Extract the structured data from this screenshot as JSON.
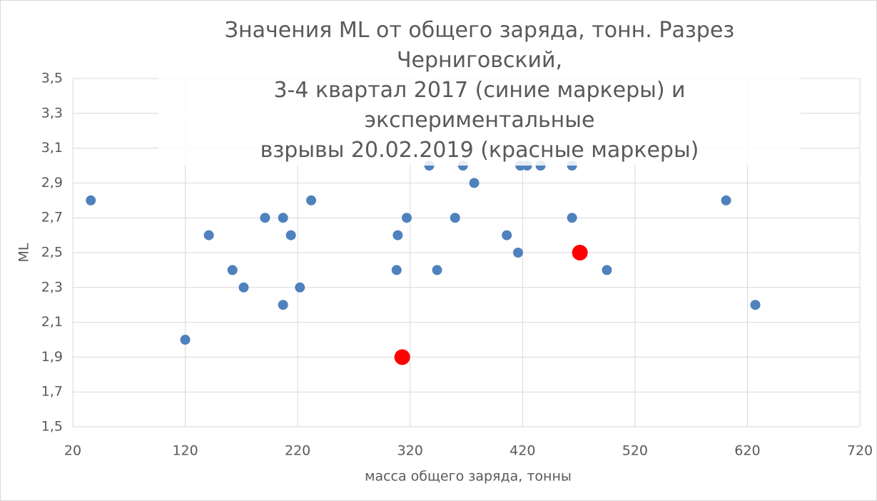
{
  "chart_data": {
    "type": "scatter",
    "title": "Значения ML от общего заряда, тонн. Разрез Черниговский,\n3-4 квартал 2017 (синие маркеры) и экспериментальные\nвзрывы 20.02.2019 (красные маркеры)",
    "x_label": "масса общего заряда, тонны",
    "y_label": "ML",
    "xlim": [
      20,
      720
    ],
    "xticks": [
      20,
      120,
      220,
      320,
      420,
      520,
      620,
      720
    ],
    "ylim": [
      1.5,
      3.5
    ],
    "yticks": [
      {
        "value": 1.5,
        "label": "1,5"
      },
      {
        "value": 1.7,
        "label": "1,7"
      },
      {
        "value": 1.9,
        "label": "1,9"
      },
      {
        "value": 2.1,
        "label": "2,1"
      },
      {
        "value": 2.3,
        "label": "2,3"
      },
      {
        "value": 2.5,
        "label": "2,5"
      },
      {
        "value": 2.7,
        "label": "2,7"
      },
      {
        "value": 2.9,
        "label": "2,9"
      },
      {
        "value": 3.1,
        "label": "3,1"
      },
      {
        "value": 3.3,
        "label": "3,3"
      },
      {
        "value": 3.5,
        "label": "3,5"
      }
    ],
    "grid": true,
    "series": [
      {
        "color": "#4f81bd",
        "x": [
          36,
          120,
          141,
          162,
          172,
          191,
          207,
          207,
          214,
          222,
          232,
          308,
          309,
          317,
          337,
          344,
          360,
          367,
          377,
          406,
          416,
          418,
          424,
          436,
          464,
          464,
          495,
          601,
          627
        ],
        "values": [
          2.8,
          2.0,
          2.6,
          2.4,
          2.3,
          2.7,
          2.7,
          2.2,
          2.6,
          2.3,
          2.8,
          2.4,
          2.6,
          2.7,
          3.0,
          2.4,
          2.7,
          3.0,
          2.9,
          2.6,
          2.5,
          3.0,
          3.0,
          3.0,
          2.7,
          3.0,
          2.4,
          2.8,
          2.2
        ]
      },
      {
        "color": "#ff0000",
        "x": [
          313,
          471
        ],
        "values": [
          1.9,
          2.5
        ]
      }
    ]
  }
}
